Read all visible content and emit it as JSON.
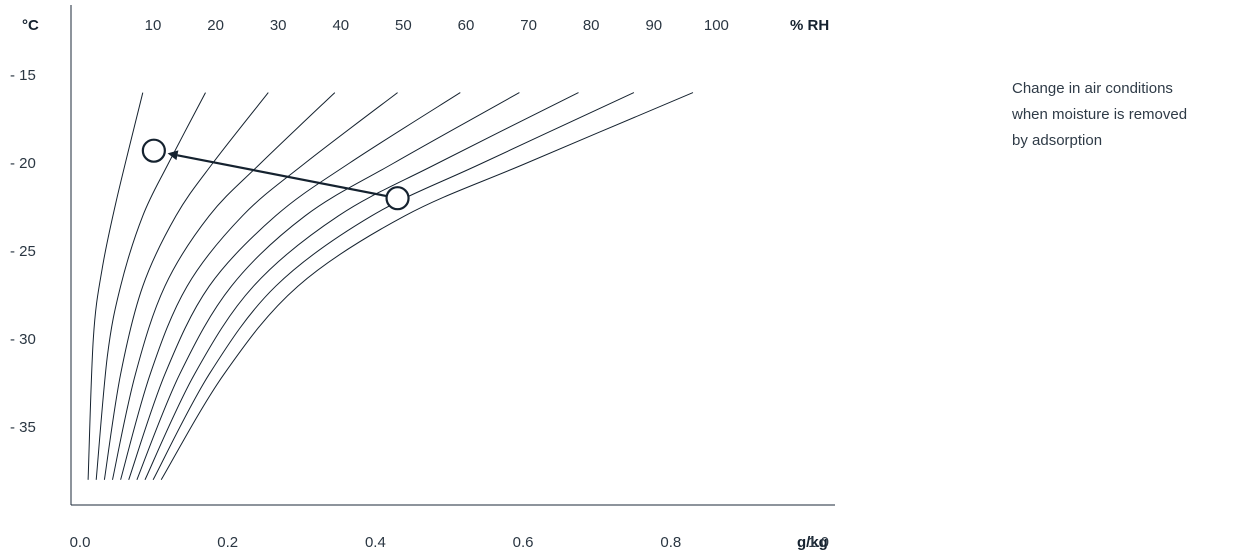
{
  "chart_data": {
    "type": "line",
    "title": "",
    "y_unit": "°C",
    "x_unit": "g/kg",
    "top_unit": "% RH",
    "x_ticks": [
      "0.0",
      "0.2",
      "0.4",
      "0.6",
      "0.8",
      "1.0"
    ],
    "y_ticks": [
      "- 15",
      "- 20",
      "- 25",
      "- 30",
      "- 35"
    ],
    "rh_ticks": [
      "10",
      "20",
      "30",
      "40",
      "50",
      "60",
      "70",
      "80",
      "90",
      "100"
    ],
    "xlim": [
      0.0,
      1.17
    ],
    "ylim": [
      -39.5,
      -12.5
    ],
    "series": [
      {
        "name": "10",
        "points": [
          [
            0.011,
            -38
          ],
          [
            0.018,
            -30
          ],
          [
            0.03,
            -26
          ],
          [
            0.05,
            -22
          ],
          [
            0.085,
            -16
          ]
        ]
      },
      {
        "name": "20",
        "points": [
          [
            0.022,
            -38
          ],
          [
            0.037,
            -31
          ],
          [
            0.055,
            -27
          ],
          [
            0.085,
            -23
          ],
          [
            0.12,
            -20
          ],
          [
            0.17,
            -16
          ]
        ]
      },
      {
        "name": "30",
        "points": [
          [
            0.033,
            -38
          ],
          [
            0.055,
            -32
          ],
          [
            0.085,
            -27
          ],
          [
            0.13,
            -23
          ],
          [
            0.18,
            -20
          ],
          [
            0.255,
            -16
          ]
        ]
      },
      {
        "name": "40",
        "points": [
          [
            0.044,
            -38
          ],
          [
            0.075,
            -32
          ],
          [
            0.115,
            -27
          ],
          [
            0.175,
            -23
          ],
          [
            0.245,
            -20
          ],
          [
            0.345,
            -16
          ]
        ]
      },
      {
        "name": "50",
        "points": [
          [
            0.055,
            -38
          ],
          [
            0.095,
            -32
          ],
          [
            0.145,
            -27
          ],
          [
            0.22,
            -23
          ],
          [
            0.305,
            -20
          ],
          [
            0.43,
            -16
          ]
        ]
      },
      {
        "name": "60",
        "points": [
          [
            0.066,
            -38
          ],
          [
            0.115,
            -32
          ],
          [
            0.175,
            -27
          ],
          [
            0.265,
            -23
          ],
          [
            0.365,
            -20
          ],
          [
            0.515,
            -16
          ]
        ]
      },
      {
        "name": "70",
        "points": [
          [
            0.077,
            -38
          ],
          [
            0.135,
            -32
          ],
          [
            0.205,
            -27
          ],
          [
            0.305,
            -23
          ],
          [
            0.425,
            -20
          ],
          [
            0.595,
            -16
          ]
        ]
      },
      {
        "name": "80",
        "points": [
          [
            0.088,
            -38
          ],
          [
            0.155,
            -32
          ],
          [
            0.235,
            -27
          ],
          [
            0.35,
            -23
          ],
          [
            0.485,
            -20
          ],
          [
            0.675,
            -16
          ]
        ]
      },
      {
        "name": "90",
        "points": [
          [
            0.099,
            -38
          ],
          [
            0.175,
            -32
          ],
          [
            0.265,
            -27
          ],
          [
            0.395,
            -23
          ],
          [
            0.545,
            -20
          ],
          [
            0.75,
            -16
          ]
        ]
      },
      {
        "name": "100",
        "points": [
          [
            0.11,
            -38
          ],
          [
            0.195,
            -32
          ],
          [
            0.295,
            -27
          ],
          [
            0.44,
            -23
          ],
          [
            0.605,
            -20
          ],
          [
            0.83,
            -16
          ]
        ]
      }
    ],
    "annotations": {
      "start_point": {
        "x": 0.43,
        "y": -22.0
      },
      "end_point": {
        "x": 0.1,
        "y": -19.3
      }
    }
  },
  "note": {
    "lines": [
      "Change in air conditions",
      "when moisture is removed",
      "by adsorption"
    ]
  }
}
